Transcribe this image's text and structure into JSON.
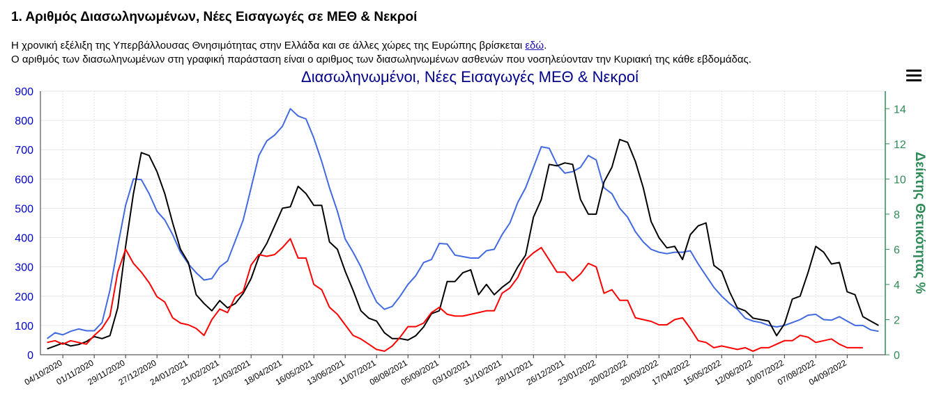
{
  "header": {
    "title": "1. Αριθμός Διασωληνωμένων, Νέες Εισαγωγές σε ΜΕΘ & Νεκροί",
    "line1_text": "Η χρονική εξέλιξη της Υπερβάλλουσας Θνησιμότητας στην Ελλάδα και σε άλλες χώρες της Ευρώπης βρίσκεται ",
    "line1_link": "εδώ",
    "line1_end": ".",
    "line2_text": "Ο αριθμός των διασωληνωμένων στη γραφική παράσταση είναι ο αριθμος των διασωληνωμένων ασθενών που νοσηλεύονταν την Κυριακή της κάθε εβδομάδας."
  },
  "menu": {
    "icon": "hamburger-menu-icon"
  },
  "chart_data": {
    "type": "line",
    "title": "Διασωληνωμένοι, Νέες Εισαγωγές ΜΕΘ & Νεκροί",
    "ylabel_right": "Δείκτης Θετικότητας %",
    "ylim_left": [
      0,
      900
    ],
    "ylim_right": [
      0,
      15
    ],
    "yticks_left": [
      0,
      100,
      200,
      300,
      400,
      500,
      600,
      700,
      800,
      900
    ],
    "yticks_right": [
      0,
      2,
      4,
      6,
      8,
      10,
      12,
      14
    ],
    "x_start": "2020-09-20",
    "x_step_days": 7,
    "x_tick_labels": [
      "04/10/2020",
      "01/11/2020",
      "29/11/2020",
      "27/12/2020",
      "24/01/2021",
      "21/02/2021",
      "21/03/2021",
      "18/04/2021",
      "16/05/2021",
      "13/06/2021",
      "11/07/2021",
      "08/08/2021",
      "05/09/2021",
      "03/10/2021",
      "31/10/2021",
      "28/11/2021",
      "26/12/2021",
      "23/01/2022",
      "20/02/2022",
      "20/03/2022",
      "17/04/2022",
      "15/05/2022",
      "12/06/2022",
      "10/07/2022",
      "07/08/2022",
      "04/09/2022"
    ],
    "grid": true,
    "colors": {
      "intubated": "#4169e1",
      "icu": "#000000",
      "deaths": "#ff0000",
      "left_axis": "#0000cc",
      "right_axis": "#2e8b57",
      "title": "#00008b"
    },
    "series": [
      {
        "key": "intubated",
        "values": [
          55,
          75,
          68,
          80,
          88,
          82,
          82,
          110,
          220,
          370,
          510,
          600,
          598,
          550,
          490,
          460,
          410,
          350,
          310,
          280,
          255,
          260,
          300,
          320,
          390,
          460,
          570,
          680,
          730,
          750,
          780,
          840,
          815,
          805,
          740,
          660,
          570,
          490,
          395,
          350,
          300,
          235,
          180,
          155,
          165,
          200,
          240,
          270,
          315,
          325,
          380,
          378,
          340,
          335,
          330,
          330,
          355,
          360,
          410,
          450,
          520,
          570,
          640,
          710,
          705,
          650,
          620,
          625,
          640,
          680,
          665,
          570,
          550,
          500,
          470,
          420,
          385,
          360,
          350,
          345,
          350,
          350,
          355,
          310,
          270,
          230,
          200,
          175,
          155,
          125,
          115,
          110,
          100,
          95,
          100,
          110,
          120,
          135,
          138,
          120,
          118,
          130,
          115,
          100,
          100,
          85,
          80
        ]
      },
      {
        "key": "icu",
        "values": [
          20,
          30,
          40,
          30,
          35,
          45,
          62,
          55,
          65,
          160,
          370,
          550,
          690,
          680,
          625,
          550,
          450,
          360,
          315,
          205,
          175,
          150,
          185,
          160,
          175,
          210,
          260,
          335,
          380,
          440,
          500,
          505,
          575,
          550,
          510,
          510,
          385,
          360,
          285,
          220,
          150,
          125,
          115,
          75,
          55,
          55,
          50,
          65,
          95,
          140,
          150,
          250,
          250,
          280,
          290,
          205,
          240,
          205,
          230,
          250,
          300,
          340,
          470,
          530,
          650,
          645,
          655,
          650,
          530,
          480,
          480,
          590,
          640,
          735,
          725,
          660,
          570,
          455,
          400,
          365,
          370,
          325,
          410,
          440,
          450,
          305,
          285,
          215,
          160,
          150,
          125,
          120,
          115,
          65,
          105,
          190,
          200,
          280,
          370,
          350,
          310,
          315,
          215,
          205,
          130,
          115,
          100
        ]
      },
      {
        "key": "deaths",
        "values": [
          0.7,
          0.8,
          0.6,
          0.8,
          0.7,
          0.6,
          1.1,
          1.5,
          2.2,
          4.7,
          6.0,
          5.2,
          4.7,
          4.1,
          3.3,
          3.0,
          2.1,
          1.8,
          1.7,
          1.5,
          1.1,
          2.0,
          2.6,
          2.4,
          3.3,
          3.6,
          5.1,
          5.7,
          5.6,
          5.7,
          6.1,
          6.6,
          5.5,
          5.5,
          4.0,
          3.7,
          2.7,
          2.3,
          1.7,
          1.1,
          0.9,
          0.6,
          0.3,
          0.2,
          0.5,
          1.0,
          1.6,
          1.6,
          1.8,
          2.4,
          2.7,
          2.3,
          2.2,
          2.2,
          2.3,
          2.4,
          2.5,
          2.5,
          3.5,
          3.8,
          4.4,
          5.4,
          5.8,
          6.1,
          5.4,
          4.7,
          4.7,
          4.2,
          4.6,
          5.2,
          5.0,
          3.5,
          3.7,
          3.1,
          3.1,
          2.1,
          2.0,
          1.9,
          1.7,
          1.7,
          2.0,
          2.1,
          1.5,
          0.8,
          0.7,
          0.4,
          0.5,
          0.4,
          0.3,
          0.4,
          0.2,
          0.4,
          0.4,
          0.6,
          0.8,
          0.8,
          1.1,
          1.0,
          0.7,
          0.8,
          0.9,
          0.6,
          0.4,
          0.4,
          0.4
        ]
      }
    ]
  }
}
